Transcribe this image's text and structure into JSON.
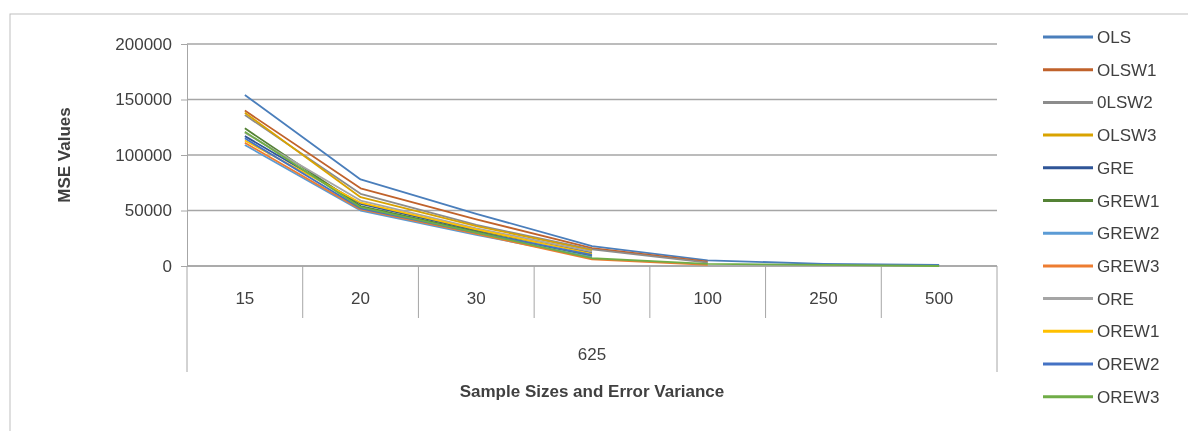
{
  "chart_data": {
    "type": "line",
    "xlabel": "Sample Sizes and Error Variance",
    "ylabel": "MSE Values",
    "categories": [
      "15",
      "20",
      "30",
      "50",
      "100",
      "250",
      "500"
    ],
    "annotations": [
      "625"
    ],
    "ylim": [
      0,
      200000
    ],
    "yticks": [
      0,
      50000,
      100000,
      150000,
      200000
    ],
    "grid": "y",
    "legend": "right",
    "marker": "none",
    "series": [
      {
        "name": "OLS",
        "color": "#4a7ebb",
        "values": [
          154000,
          78000,
          47000,
          18000,
          5000,
          2000,
          1000
        ]
      },
      {
        "name": "OLSW1",
        "color": "#c0622b",
        "values": [
          140000,
          70000,
          42000,
          16000,
          4000,
          null,
          null
        ]
      },
      {
        "name": "0LSW2",
        "color": "#8c8c8c",
        "values": [
          136000,
          65000,
          37000,
          15000,
          3000,
          null,
          null
        ]
      },
      {
        "name": "OLSW3",
        "color": "#d9a300",
        "values": [
          138000,
          62000,
          36000,
          14000,
          null,
          null,
          null
        ]
      },
      {
        "name": "GRE",
        "color": "#2f5597",
        "values": [
          117000,
          56000,
          32000,
          12000,
          null,
          null,
          null
        ]
      },
      {
        "name": "GREW1",
        "color": "#548235",
        "values": [
          124000,
          54000,
          31000,
          9000,
          null,
          null,
          null
        ]
      },
      {
        "name": "GREW2",
        "color": "#5b9bd5",
        "values": [
          109000,
          50000,
          28000,
          8000,
          null,
          null,
          null
        ]
      },
      {
        "name": "GREW3",
        "color": "#ed7d31",
        "values": [
          111000,
          51000,
          29000,
          6000,
          1000,
          null,
          null
        ]
      },
      {
        "name": "ORE",
        "color": "#a5a5a5",
        "values": [
          120000,
          59000,
          34000,
          13000,
          null,
          null,
          null
        ]
      },
      {
        "name": "OREW1",
        "color": "#ffc000",
        "values": [
          113000,
          57000,
          33000,
          11000,
          null,
          null,
          null
        ]
      },
      {
        "name": "OREW2",
        "color": "#4472c4",
        "values": [
          115000,
          52000,
          30000,
          10000,
          null,
          null,
          null
        ]
      },
      {
        "name": "OREW3",
        "color": "#70ad47",
        "values": [
          121000,
          53000,
          30000,
          7000,
          2000,
          1000,
          0
        ]
      }
    ]
  }
}
